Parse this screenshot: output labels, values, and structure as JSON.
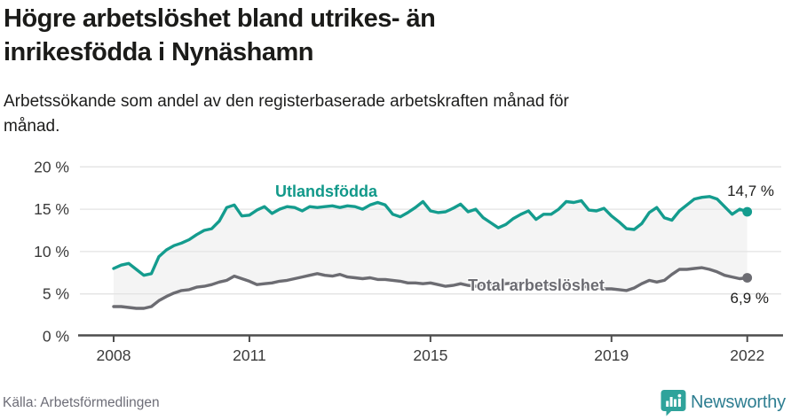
{
  "header": {
    "title_lines": [
      "Högre arbetslöshet bland utrikes- än",
      "inrikesfödda i Nynäshamn"
    ],
    "subtitle_lines": [
      "Arbetssökande som andel av den registerbaserade arbetskraften månad för",
      "månad."
    ]
  },
  "chart_data": {
    "type": "line",
    "title": "Högre arbetslöshet bland utrikes- än inrikesfödda i Nynäshamn",
    "subtitle": "Arbetssökande som andel av den registerbaserade arbetskraften månad för månad.",
    "unit": "%",
    "x_start_year": 2008,
    "points_per_year": 6,
    "ylim": [
      0,
      20
    ],
    "grid": true,
    "legend_position": "inline-labels",
    "x_ticks": [
      {
        "year": 2008,
        "label": "2008"
      },
      {
        "year": 2011,
        "label": "2011"
      },
      {
        "year": 2015,
        "label": "2015"
      },
      {
        "year": 2019,
        "label": "2019"
      },
      {
        "year": 2022,
        "label": "2022"
      }
    ],
    "y_ticks": [
      {
        "value": 0,
        "label": "0 %"
      },
      {
        "value": 5,
        "label": "5 %"
      },
      {
        "value": 10,
        "label": "10 %"
      },
      {
        "value": 15,
        "label": "15 %"
      },
      {
        "value": 20,
        "label": "20 %"
      }
    ],
    "series": [
      {
        "name": "Utlandsfödda",
        "color": "#149c8e",
        "end_label": "14,7 %",
        "end_value": 14.7,
        "values": [
          8.0,
          8.4,
          8.6,
          7.9,
          7.2,
          7.4,
          9.4,
          10.2,
          10.7,
          11.0,
          11.4,
          12.0,
          12.5,
          12.7,
          13.6,
          15.2,
          15.5,
          14.2,
          14.3,
          14.9,
          15.3,
          14.5,
          15.0,
          15.3,
          15.2,
          14.8,
          15.3,
          15.2,
          15.3,
          15.4,
          15.2,
          15.4,
          15.3,
          15.0,
          15.5,
          15.8,
          15.5,
          14.4,
          14.1,
          14.6,
          15.2,
          15.9,
          14.8,
          14.6,
          14.7,
          15.1,
          15.6,
          14.7,
          15.0,
          14.0,
          13.4,
          12.8,
          13.2,
          13.9,
          14.4,
          14.8,
          13.8,
          14.4,
          14.4,
          15.0,
          15.9,
          15.8,
          16.0,
          14.9,
          14.8,
          15.1,
          14.2,
          13.5,
          12.7,
          12.6,
          13.3,
          14.6,
          15.2,
          14.0,
          13.7,
          14.8,
          15.5,
          16.2,
          16.4,
          16.5,
          16.2,
          15.3,
          14.4,
          15.0,
          14.7
        ]
      },
      {
        "name": "Total arbetslöshet",
        "color": "#6c6c72",
        "end_label": "6,9 %",
        "end_value": 6.9,
        "values": [
          3.5,
          3.5,
          3.4,
          3.3,
          3.3,
          3.5,
          4.2,
          4.7,
          5.1,
          5.4,
          5.5,
          5.8,
          5.9,
          6.1,
          6.4,
          6.6,
          7.1,
          6.8,
          6.5,
          6.1,
          6.2,
          6.3,
          6.5,
          6.6,
          6.8,
          7.0,
          7.2,
          7.4,
          7.2,
          7.1,
          7.3,
          7.0,
          6.9,
          6.8,
          6.9,
          6.7,
          6.7,
          6.6,
          6.5,
          6.3,
          6.3,
          6.2,
          6.3,
          6.1,
          5.9,
          6.0,
          6.2,
          6.0,
          5.9,
          6.1,
          6.2,
          6.0,
          6.2,
          6.3,
          6.2,
          6.3,
          6.1,
          6.2,
          6.0,
          6.1,
          6.1,
          6.0,
          5.9,
          5.8,
          5.7,
          5.6,
          5.6,
          5.5,
          5.4,
          5.7,
          6.2,
          6.6,
          6.4,
          6.6,
          7.3,
          7.9,
          7.9,
          8.0,
          8.1,
          7.9,
          7.6,
          7.2,
          7.0,
          6.8,
          6.9
        ]
      }
    ]
  },
  "colors": {
    "accent_teal": "#149c8e",
    "line_gray": "#6c6c72",
    "fill_between": "#f4f4f4",
    "gridline": "#e3e3e3",
    "axis": "#4d4d4d",
    "tick_text": "#3b3b3b",
    "brand_icon": "#2fa39b",
    "brand_text": "#2e7e91"
  },
  "footer": {
    "source": "Källa: Arbetsförmedlingen",
    "brand": "Newsworthy",
    "brand_icon": "speech-bubble-bar-chart"
  }
}
